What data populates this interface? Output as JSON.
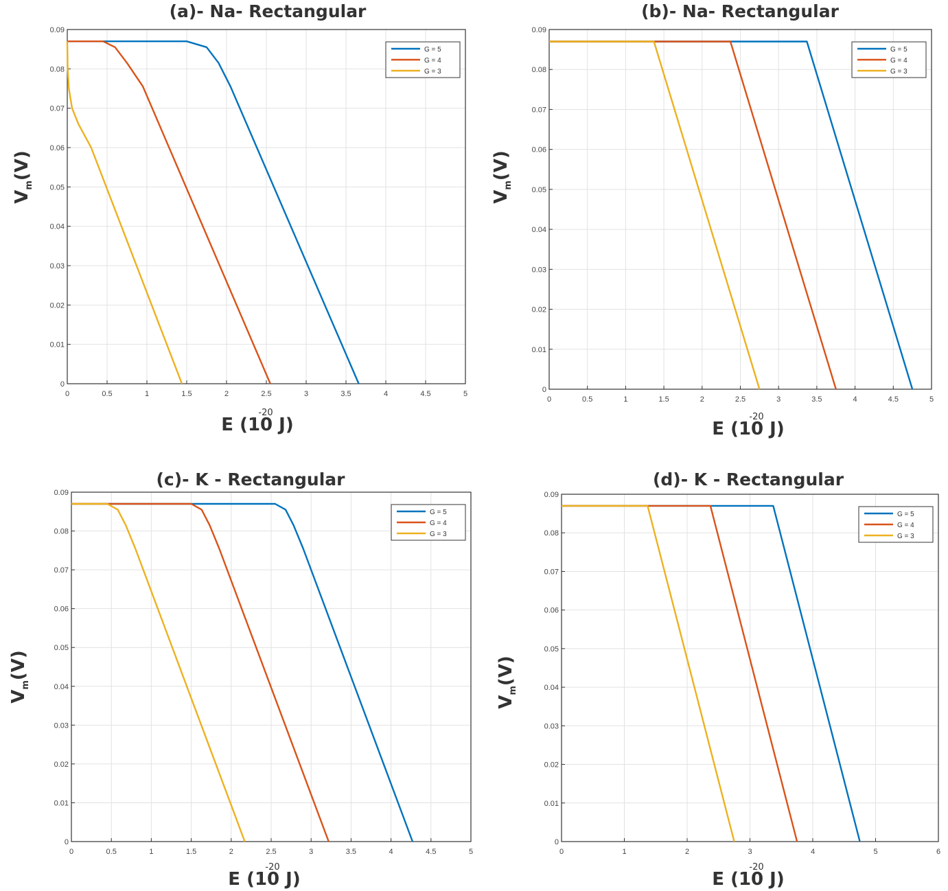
{
  "charts_style": {
    "series_colors": [
      "#0072BD",
      "#D95319",
      "#EDB120"
    ],
    "grid": true,
    "legend_position": "top-right"
  },
  "chart_data": [
    {
      "type": "line",
      "title": "(a)- Na- Rectangular",
      "xlabel": "E (10 J)",
      "xlabel_exp": "-20",
      "ylabel": "V",
      "ylabel_sub": "m",
      "ylabel_unit": "(V)",
      "xlim": [
        0,
        5
      ],
      "ylim": [
        0,
        0.09
      ],
      "xticks": [
        "0",
        "0.5",
        "1",
        "1.5",
        "2",
        "2.5",
        "3",
        "3.5",
        "4",
        "4.5",
        "5"
      ],
      "yticks": [
        "0",
        "0.01",
        "0.02",
        "0.03",
        "0.04",
        "0.05",
        "0.06",
        "0.07",
        "0.08",
        "0.09"
      ],
      "legend": [
        "G = 5",
        "G = 4",
        "G = 3"
      ],
      "series": [
        {
          "name": "G = 5",
          "x": [
            0,
            1.5,
            1.75,
            1.9,
            2.05,
            3.66
          ],
          "y": [
            0.087,
            0.087,
            0.0855,
            0.0815,
            0.0755,
            0
          ]
        },
        {
          "name": "G = 4",
          "x": [
            0,
            0.45,
            0.6,
            0.75,
            0.95,
            2.55
          ],
          "y": [
            0.087,
            0.087,
            0.0855,
            0.0815,
            0.0755,
            0
          ]
        },
        {
          "name": "G = 3",
          "x": [
            0,
            0.005,
            0.02,
            0.06,
            0.14,
            0.3,
            1.44
          ],
          "y": [
            0.087,
            0.08,
            0.075,
            0.07,
            0.066,
            0.06,
            0
          ]
        }
      ]
    },
    {
      "type": "line",
      "title": "(b)- Na- Rectangular",
      "xlabel": "E (10 J)",
      "xlabel_exp": "-20",
      "ylabel": "V",
      "ylabel_sub": "m",
      "ylabel_unit": "(V)",
      "xlim": [
        0,
        5
      ],
      "ylim": [
        0,
        0.09
      ],
      "xticks": [
        "0",
        "0.5",
        "1",
        "1.5",
        "2",
        "2.5",
        "3",
        "3.5",
        "4",
        "4.5",
        "5"
      ],
      "yticks": [
        "0",
        "0.01",
        "0.02",
        "0.03",
        "0.04",
        "0.05",
        "0.06",
        "0.07",
        "0.08",
        "0.09"
      ],
      "legend": [
        "G = 5",
        "G = 4",
        "G = 3"
      ],
      "series": [
        {
          "name": "G = 5",
          "x": [
            0,
            3.37,
            4.75
          ],
          "y": [
            0.087,
            0.087,
            0
          ]
        },
        {
          "name": "G = 4",
          "x": [
            0,
            2.37,
            3.75
          ],
          "y": [
            0.087,
            0.087,
            0
          ]
        },
        {
          "name": "G = 3",
          "x": [
            0,
            1.37,
            2.75
          ],
          "y": [
            0.087,
            0.087,
            0
          ]
        }
      ]
    },
    {
      "type": "line",
      "title": "(c)- K - Rectangular",
      "xlabel": "E (10 J)",
      "xlabel_exp": "-20",
      "ylabel": "V",
      "ylabel_sub": "m",
      "ylabel_unit": "(V)",
      "xlim": [
        0,
        5
      ],
      "ylim": [
        0,
        0.09
      ],
      "xticks": [
        "0",
        "0.5",
        "1",
        "1.5",
        "2",
        "2.5",
        "3",
        "3.5",
        "4",
        "4.5",
        "5"
      ],
      "yticks": [
        "0",
        "0.01",
        "0.02",
        "0.03",
        "0.04",
        "0.05",
        "0.06",
        "0.07",
        "0.08",
        "0.09"
      ],
      "legend": [
        "G = 5",
        "G = 4",
        "G = 3"
      ],
      "series": [
        {
          "name": "G = 5",
          "x": [
            0,
            2.55,
            2.68,
            2.78,
            2.9,
            4.27
          ],
          "y": [
            0.087,
            0.087,
            0.0855,
            0.0815,
            0.0755,
            0
          ]
        },
        {
          "name": "G = 4",
          "x": [
            0,
            1.5,
            1.63,
            1.73,
            1.85,
            3.22
          ],
          "y": [
            0.087,
            0.087,
            0.0855,
            0.0815,
            0.0755,
            0
          ]
        },
        {
          "name": "G = 3",
          "x": [
            0,
            0.45,
            0.58,
            0.68,
            0.8,
            2.17
          ],
          "y": [
            0.087,
            0.087,
            0.0855,
            0.0815,
            0.0755,
            0
          ]
        }
      ]
    },
    {
      "type": "line",
      "title": "(d)- K - Rectangular",
      "xlabel": "E (10 J)",
      "xlabel_exp": "-20",
      "ylabel": "V",
      "ylabel_sub": "m",
      "ylabel_unit": "(V)",
      "xlim": [
        0,
        6
      ],
      "ylim": [
        0,
        0.09
      ],
      "xticks": [
        "0",
        "1",
        "2",
        "3",
        "4",
        "5",
        "6"
      ],
      "yticks": [
        "0",
        "0.01",
        "0.02",
        "0.03",
        "0.04",
        "0.05",
        "0.06",
        "0.07",
        "0.08",
        "0.09"
      ],
      "legend": [
        "G = 5",
        "G = 4",
        "G = 3"
      ],
      "series": [
        {
          "name": "G = 5",
          "x": [
            0,
            3.37,
            4.75
          ],
          "y": [
            0.087,
            0.087,
            0
          ]
        },
        {
          "name": "G = 4",
          "x": [
            0,
            2.37,
            3.75
          ],
          "y": [
            0.087,
            0.087,
            0
          ]
        },
        {
          "name": "G = 3",
          "x": [
            0,
            1.37,
            2.75
          ],
          "y": [
            0.087,
            0.087,
            0
          ]
        }
      ]
    }
  ]
}
